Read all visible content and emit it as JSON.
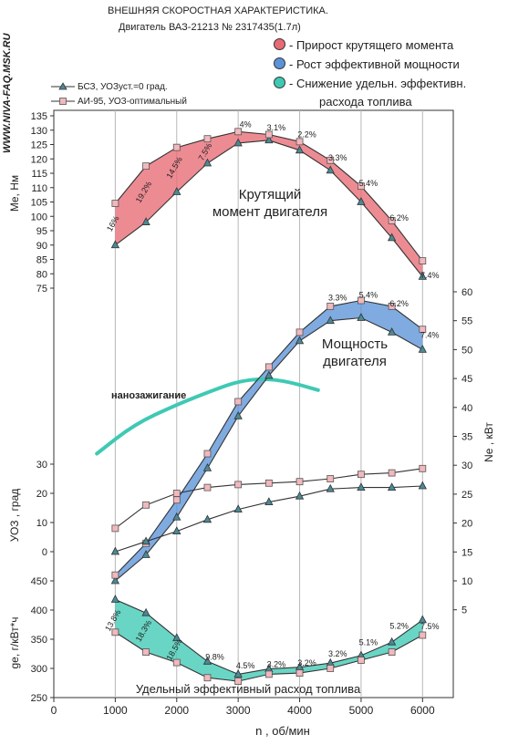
{
  "page": {
    "side_url": "WWW.NIVA-FAQ.MSK.RU",
    "title_line1": "ВНЕШНЯЯ СКОРОСТНАЯ ХАРАКТЕРИСТИКА.",
    "title_line2": "Двигатель ВАЗ-21213  № 2317435(1.7л)"
  },
  "legend": {
    "items": [
      {
        "label": "- Прирост крутящего момента",
        "color": "#e86a74"
      },
      {
        "label": "- Рост эффективной мощности",
        "color": "#5b93d8"
      },
      {
        "label": "- Снижение удельн. эффективн.",
        "color": "#3fc9b4"
      }
    ],
    "continuation": "расхода топлива",
    "series": [
      {
        "label": "БСЗ, УОЗуст.=0 град.",
        "marker": "triangle"
      },
      {
        "label": "АИ-95, УОЗ-оптимальный",
        "marker": "square"
      }
    ]
  },
  "chart_data": {
    "type": "line",
    "x_label": "n , об/мин",
    "x_ticks": [
      "0",
      "1000",
      "2000",
      "3000",
      "4000",
      "5000",
      "6000"
    ],
    "x": [
      1000,
      1500,
      2000,
      2500,
      3000,
      3500,
      4000,
      4500,
      5000,
      5500,
      6000
    ],
    "panels": [
      {
        "name": "torque",
        "ylabel": "Me, Нм",
        "ylim": [
          75,
          135
        ],
        "ticks": [
          "75",
          "80",
          "85",
          "90",
          "95",
          "100",
          "105",
          "110",
          "115",
          "120",
          "125",
          "130",
          "135"
        ],
        "annotation": "Крутящий момент двигателя",
        "fill_color": "#e86a74",
        "series": [
          {
            "marker": "triangle",
            "values": [
              90,
              98,
              108.5,
              118.5,
              125.5,
              126.5,
              123,
              116,
              105,
              92.5,
              79
            ]
          },
          {
            "marker": "square",
            "values": [
              104.5,
              117.5,
              124,
              127,
              129.5,
              128.5,
              126,
              119.5,
              110.5,
              98.5,
              84.5
            ]
          }
        ],
        "labels": [
          {
            "x": 1000,
            "y": 97,
            "text": "16%",
            "rot": -60
          },
          {
            "x": 1500,
            "y": 108,
            "text": "19.2%",
            "rot": -60
          },
          {
            "x": 2000,
            "y": 116.5,
            "text": "14.5%",
            "rot": -60
          },
          {
            "x": 2500,
            "y": 122,
            "text": "7.5%",
            "rot": -60
          },
          {
            "x": 3000,
            "y": 131,
            "text": "4%",
            "rot": 0
          },
          {
            "x": 3500,
            "y": 130,
            "text": "3.1%",
            "rot": 0
          },
          {
            "x": 4000,
            "y": 127.5,
            "text": "2.2%",
            "rot": 0
          },
          {
            "x": 4500,
            "y": 119.5,
            "text": "3.3%",
            "rot": 0
          },
          {
            "x": 5000,
            "y": 110.5,
            "text": "5.4%",
            "rot": 0
          },
          {
            "x": 5500,
            "y": 98.5,
            "text": "6.2%",
            "rot": 0
          },
          {
            "x": 6000,
            "y": 78.5,
            "text": "7.4%",
            "rot": 0
          }
        ]
      },
      {
        "name": "power",
        "ylabel": "Ne , кВт",
        "ylim": [
          10,
          60
        ],
        "ticks": [
          "5",
          "10",
          "15",
          "20",
          "25",
          "30",
          "35",
          "40",
          "45",
          "50",
          "55",
          "60"
        ],
        "annotation": "Мощность двигателя",
        "fill_color": "#5b93d8",
        "series": [
          {
            "marker": "triangle",
            "values": [
              10,
              14.5,
              21,
              29.5,
              38.5,
              45.5,
              51.5,
              55,
              55.5,
              53,
              50
            ]
          },
          {
            "marker": "square",
            "values": [
              11,
              16.5,
              24,
              32,
              41,
              47,
              53,
              57.5,
              58.5,
              57.5,
              53.5
            ]
          }
        ],
        "labels": [
          {
            "x": 4500,
            "y": 58.5,
            "text": "3.3%",
            "rot": 0
          },
          {
            "x": 5000,
            "y": 59,
            "text": "5.4%",
            "rot": 0
          },
          {
            "x": 5500,
            "y": 57.5,
            "text": "6.2%",
            "rot": 0
          },
          {
            "x": 6000,
            "y": 52,
            "text": "7.4%",
            "rot": 0
          }
        ],
        "nano_label": "нанозажигание",
        "nano_color": "#3fc9b4",
        "nano_curve": {
          "x": [
            700,
            1300,
            2000,
            2600,
            3000,
            3400,
            3800,
            4300
          ],
          "y": [
            32,
            37,
            40.5,
            43,
            44.5,
            45,
            44.5,
            43
          ]
        }
      },
      {
        "name": "ignition",
        "ylabel": "УОЗ , град",
        "ylim": [
          0,
          30
        ],
        "ticks": [
          "0",
          "10",
          "20",
          "30"
        ],
        "series": [
          {
            "marker": "triangle",
            "values": [
              0,
              3.5,
              7,
              11,
              14.5,
              17,
              19,
              21.5,
              22,
              22,
              22.5
            ]
          },
          {
            "marker": "square",
            "values": [
              8,
              16,
              20,
              22,
              23,
              23.5,
              24,
              25,
              26.5,
              27,
              28.5
            ]
          }
        ]
      },
      {
        "name": "consumption",
        "ylabel": "ge, г/кВт*ч",
        "ylim": [
          250,
          450
        ],
        "ticks": [
          "250",
          "300",
          "350",
          "400",
          "450"
        ],
        "annotation": "Удельный эффективный расход топлива",
        "fill_color": "#3fc9b4",
        "series": [
          {
            "marker": "triangle",
            "values": [
              418,
              395,
              352,
              312,
              290,
              299,
              302,
              309,
              322,
              345,
              383
            ]
          },
          {
            "marker": "square",
            "values": [
              362,
              328,
              310,
              284,
              278,
              290,
              292,
              300,
              314,
              328,
              357
            ]
          }
        ],
        "labels": [
          {
            "x": 1000,
            "y": 380,
            "text": "13.8%",
            "rot": -60
          },
          {
            "x": 1500,
            "y": 362,
            "text": "18.3%",
            "rot": -60
          },
          {
            "x": 2000,
            "y": 330,
            "text": "18.5%",
            "rot": -60
          },
          {
            "x": 2500,
            "y": 315,
            "text": "9.8%",
            "rot": 0
          },
          {
            "x": 3000,
            "y": 300,
            "text": "4.5%",
            "rot": 0
          },
          {
            "x": 3500,
            "y": 302,
            "text": "3.2%",
            "rot": 0
          },
          {
            "x": 4000,
            "y": 305,
            "text": "3.2%",
            "rot": 0
          },
          {
            "x": 4500,
            "y": 320,
            "text": "3.2%",
            "rot": 0
          },
          {
            "x": 5000,
            "y": 340,
            "text": "5.1%",
            "rot": 0
          },
          {
            "x": 5500,
            "y": 368,
            "text": "5.2%",
            "rot": 0
          },
          {
            "x": 6000,
            "y": 367,
            "text": "7.5%",
            "rot": 0
          }
        ]
      }
    ]
  }
}
